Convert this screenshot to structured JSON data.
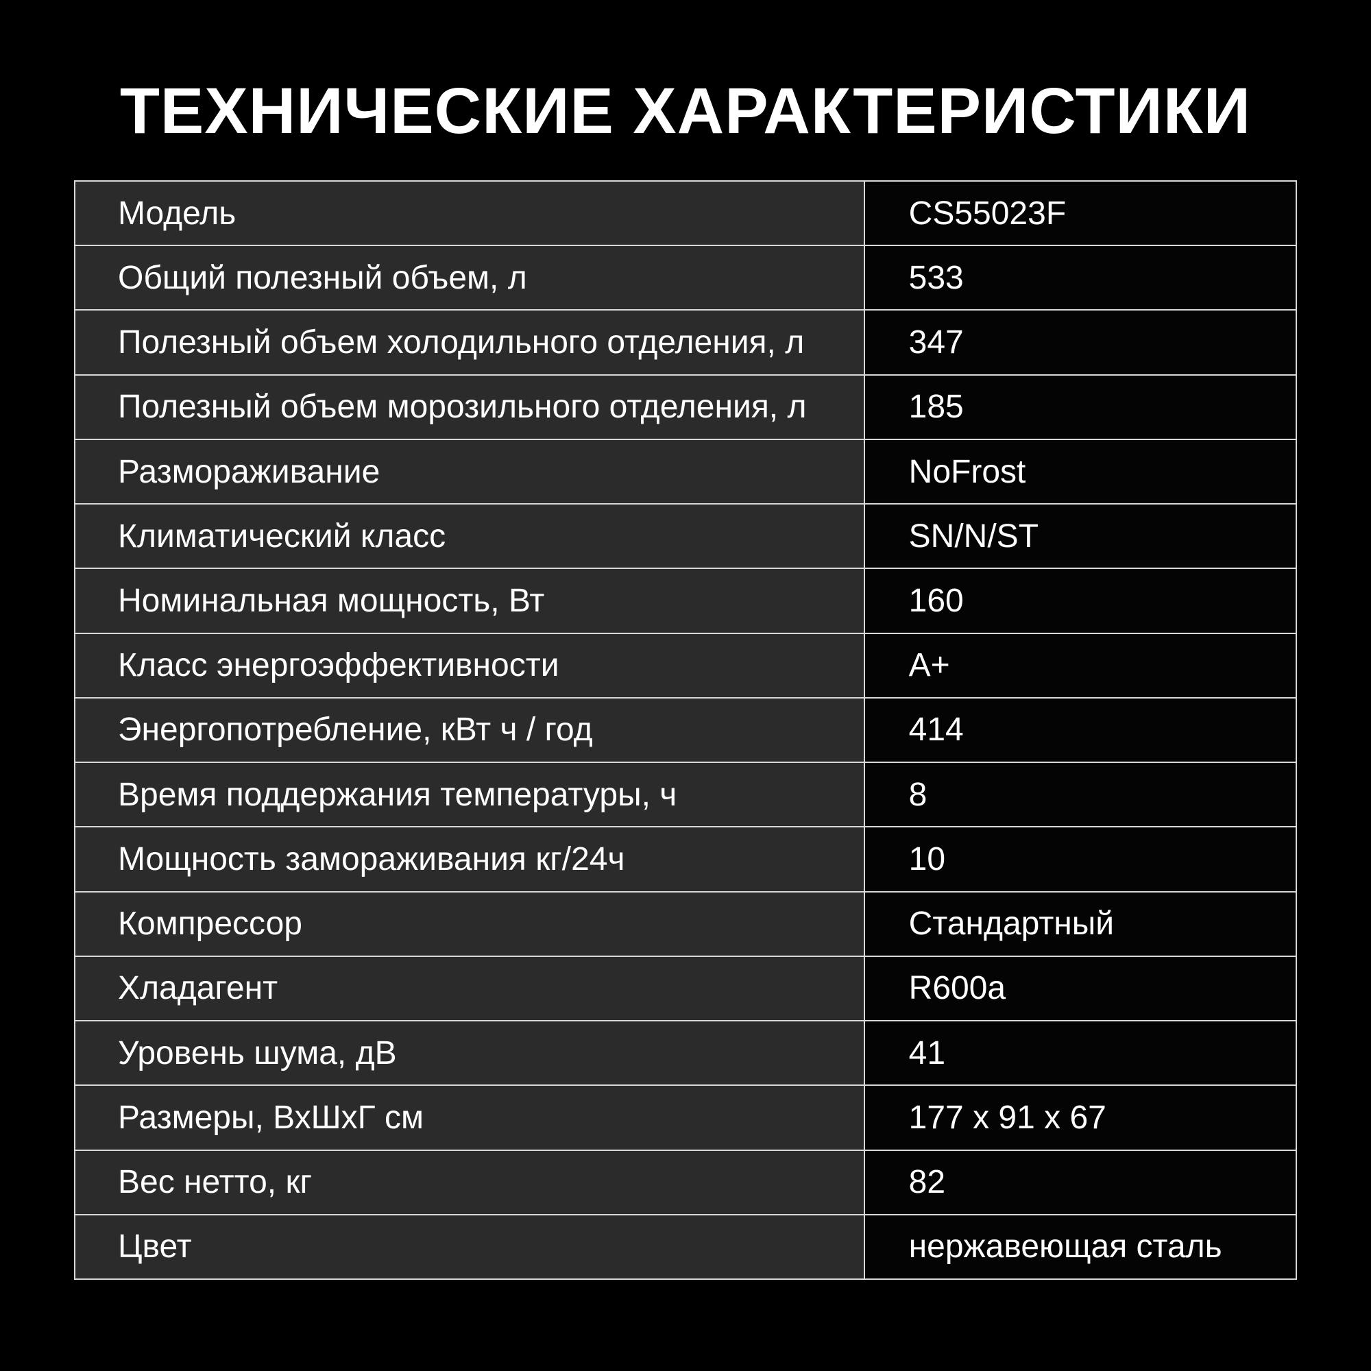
{
  "page": {
    "title": "ТЕХНИЧЕСКИЕ ХАРАКТЕРИСТИКИ"
  },
  "colors": {
    "background": "#000000",
    "label_cell_bg": "#2b2b2b",
    "value_cell_bg": "#040404",
    "border": "#d9d9d9",
    "text": "#ffffff"
  },
  "table": {
    "rows": [
      {
        "label": "Модель",
        "value": "CS55023F"
      },
      {
        "label": "Общий полезный объем, л",
        "value": "533"
      },
      {
        "label": "Полезный объем холодильного отделения, л",
        "value": "347"
      },
      {
        "label": "Полезный объем морозильного отделения, л",
        "value": "185"
      },
      {
        "label": "Размораживание",
        "value": "NoFrost"
      },
      {
        "label": "Климатический класс",
        "value": "SN/N/ST"
      },
      {
        "label": "Номинальная мощность, Вт",
        "value": "160"
      },
      {
        "label": "Класс энергоэффективности",
        "value": "A+"
      },
      {
        "label": "Энергопотребление, кВт ч / год",
        "value": "414"
      },
      {
        "label": "Время поддержания температуры, ч",
        "value": "8"
      },
      {
        "label": "Мощность замораживания кг/24ч",
        "value": "10"
      },
      {
        "label": "Компрессор",
        "value": "Стандартный"
      },
      {
        "label": "Хладагент",
        "value": "R600a"
      },
      {
        "label": "Уровень шума, дВ",
        "value": "41"
      },
      {
        "label": "Размеры, ВхШхГ см",
        "value": "177 x 91 x 67"
      },
      {
        "label": "Вес нетто, кг",
        "value": "82"
      },
      {
        "label": "Цвет",
        "value": "нержавеющая сталь"
      }
    ]
  }
}
